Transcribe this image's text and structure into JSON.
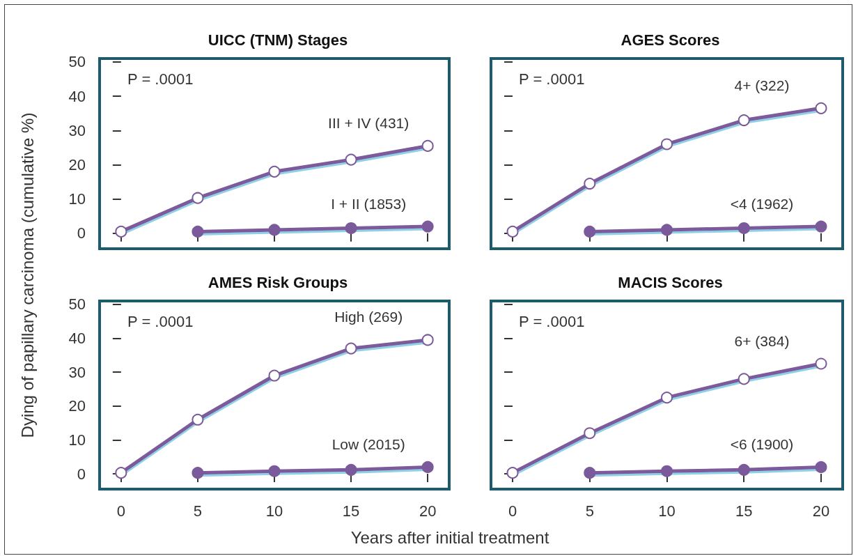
{
  "chart_data": [
    {
      "type": "line",
      "title": "UICC (TNM) Stages",
      "ylabel": "Dying of papillary carcinoma (cumulative %)",
      "annotations": [
        "P = .0001"
      ],
      "x": [
        0,
        5,
        10,
        15,
        20
      ],
      "xlim": [
        -1.4,
        21.4
      ],
      "xticks": [
        0,
        5,
        10,
        15,
        20
      ],
      "ylim": [
        -4.5,
        51
      ],
      "yticks": [
        0,
        10,
        20,
        30,
        40,
        50
      ],
      "tick_labels": "y",
      "grid": false,
      "legend": false,
      "marker": "circle",
      "line_style": "solid",
      "series": [
        {
          "name": "III + IV (431)",
          "color": "#7b5a9b",
          "values": [
            0.5,
            10.3,
            18,
            21.5,
            25.5
          ]
        },
        {
          "name": "I + II (1853)",
          "color": "#7b5a9b",
          "values": [
            null,
            0.5,
            1,
            1.5,
            2
          ]
        }
      ]
    },
    {
      "type": "line",
      "title": "AGES Scores",
      "annotations": [
        "P = .0001"
      ],
      "x": [
        0,
        5,
        10,
        15,
        20
      ],
      "xlim": [
        -1.4,
        21.4
      ],
      "xticks": [
        0,
        5,
        10,
        15,
        20
      ],
      "ylim": [
        -4.5,
        51
      ],
      "yticks": [
        0,
        10,
        20,
        30,
        40,
        50
      ],
      "tick_labels": false,
      "grid": false,
      "legend": false,
      "marker": "circle",
      "line_style": "solid",
      "series": [
        {
          "name": "4+ (322)",
          "color": "#7b5a9b",
          "values": [
            0.5,
            14.5,
            26,
            33,
            36.5
          ]
        },
        {
          "name": "<4 (1962)",
          "color": "#7b5a9b",
          "values": [
            null,
            0.5,
            1,
            1.5,
            2
          ]
        }
      ]
    },
    {
      "type": "line",
      "title": "AMES Risk Groups",
      "annotations": [
        "P = .0001"
      ],
      "x": [
        0,
        5,
        10,
        15,
        20
      ],
      "xlim": [
        -1.4,
        21.4
      ],
      "xticks": [
        0,
        5,
        10,
        15,
        20
      ],
      "ylim": [
        -4.5,
        51
      ],
      "yticks": [
        0,
        10,
        20,
        30,
        40,
        50
      ],
      "grid": false,
      "legend": false,
      "marker": "circle",
      "line_style": "solid",
      "series": [
        {
          "name": "High (269)",
          "color": "#7b5a9b",
          "values": [
            0.3,
            16,
            29,
            37,
            39.5
          ]
        },
        {
          "name": "Low (2015)",
          "color": "#7b5a9b",
          "values": [
            null,
            0.3,
            0.8,
            1.2,
            2
          ]
        }
      ]
    },
    {
      "type": "line",
      "title": "MACIS Scores",
      "xlabel": "Years after initial treatment",
      "annotations": [
        "P = .0001"
      ],
      "x": [
        0,
        5,
        10,
        15,
        20
      ],
      "xlim": [
        -1.4,
        21.4
      ],
      "xticks": [
        0,
        5,
        10,
        15,
        20
      ],
      "ylim": [
        -4.5,
        51
      ],
      "yticks": [
        0,
        10,
        20,
        30,
        40,
        50
      ],
      "tick_labels": "x",
      "grid": false,
      "legend": false,
      "marker": "circle",
      "line_style": "solid",
      "series": [
        {
          "name": "6+ (384)",
          "color": "#7b5a9b",
          "values": [
            0.3,
            12,
            22.5,
            28,
            32.5
          ]
        },
        {
          "name": "<6 (1900)",
          "color": "#7b5a9b",
          "values": [
            null,
            0.3,
            0.8,
            1.2,
            2
          ]
        }
      ]
    }
  ]
}
